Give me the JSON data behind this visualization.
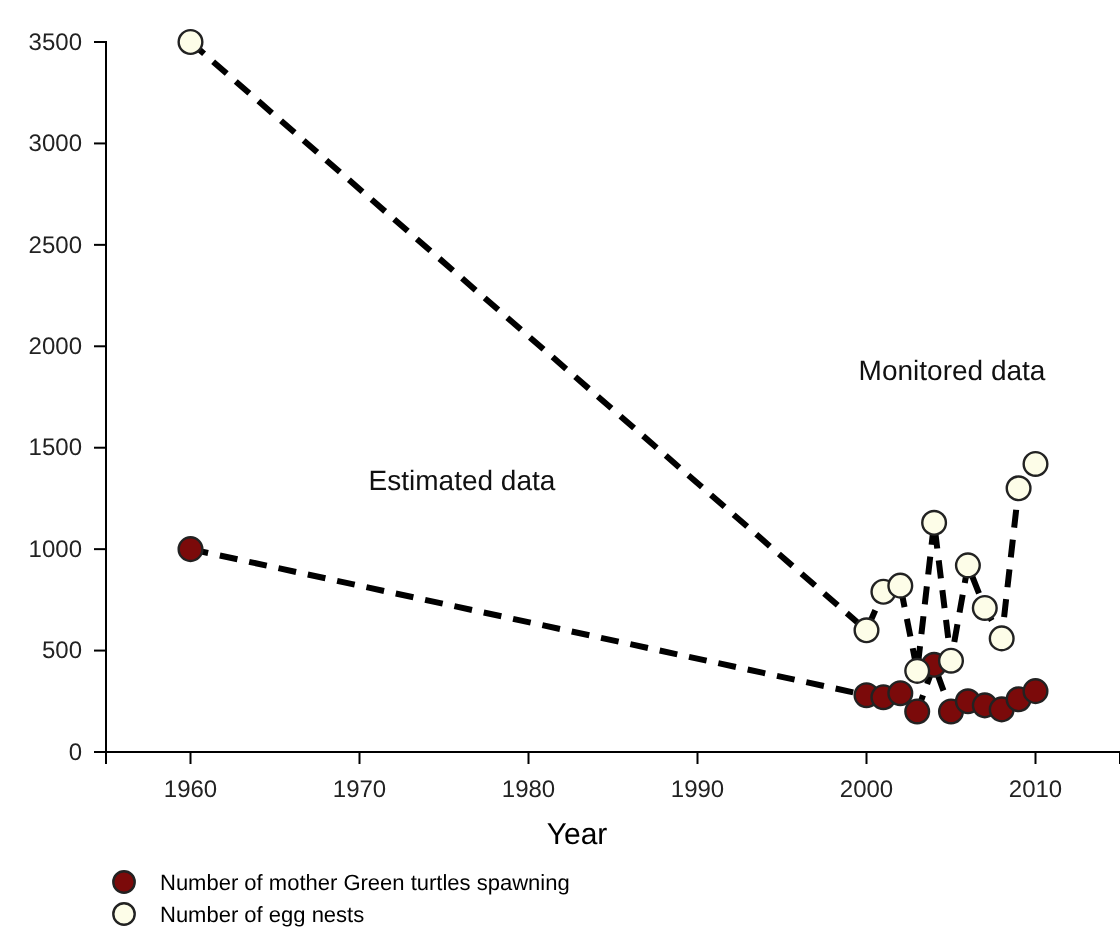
{
  "chart_data": {
    "type": "line",
    "xlabel": "Year",
    "x": [
      1960,
      2000,
      2001,
      2002,
      2003,
      2004,
      2005,
      2006,
      2007,
      2008,
      2009,
      2010
    ],
    "series": [
      {
        "name": "Number of mother Green turtles spawning",
        "color": "#7b0a0a",
        "values": [
          1000,
          280,
          270,
          290,
          200,
          430,
          200,
          250,
          230,
          210,
          260,
          300
        ]
      },
      {
        "name": "Number of egg nests",
        "color": "#fdfde8",
        "values": [
          3500,
          600,
          790,
          820,
          400,
          1130,
          450,
          920,
          710,
          560,
          1300,
          1420
        ]
      }
    ],
    "xlim": [
      1955,
      2015
    ],
    "xticks": [
      1960,
      1970,
      1980,
      1990,
      2000,
      2010
    ],
    "ylim": [
      0,
      3500
    ],
    "yticks": [
      0,
      500,
      1000,
      1500,
      2000,
      2500,
      3000,
      3500
    ],
    "annotations": [
      "Estimated data",
      "Monitored data"
    ],
    "legend": "bottom",
    "grid": false,
    "marker": "circle",
    "line_style": "dashed"
  }
}
